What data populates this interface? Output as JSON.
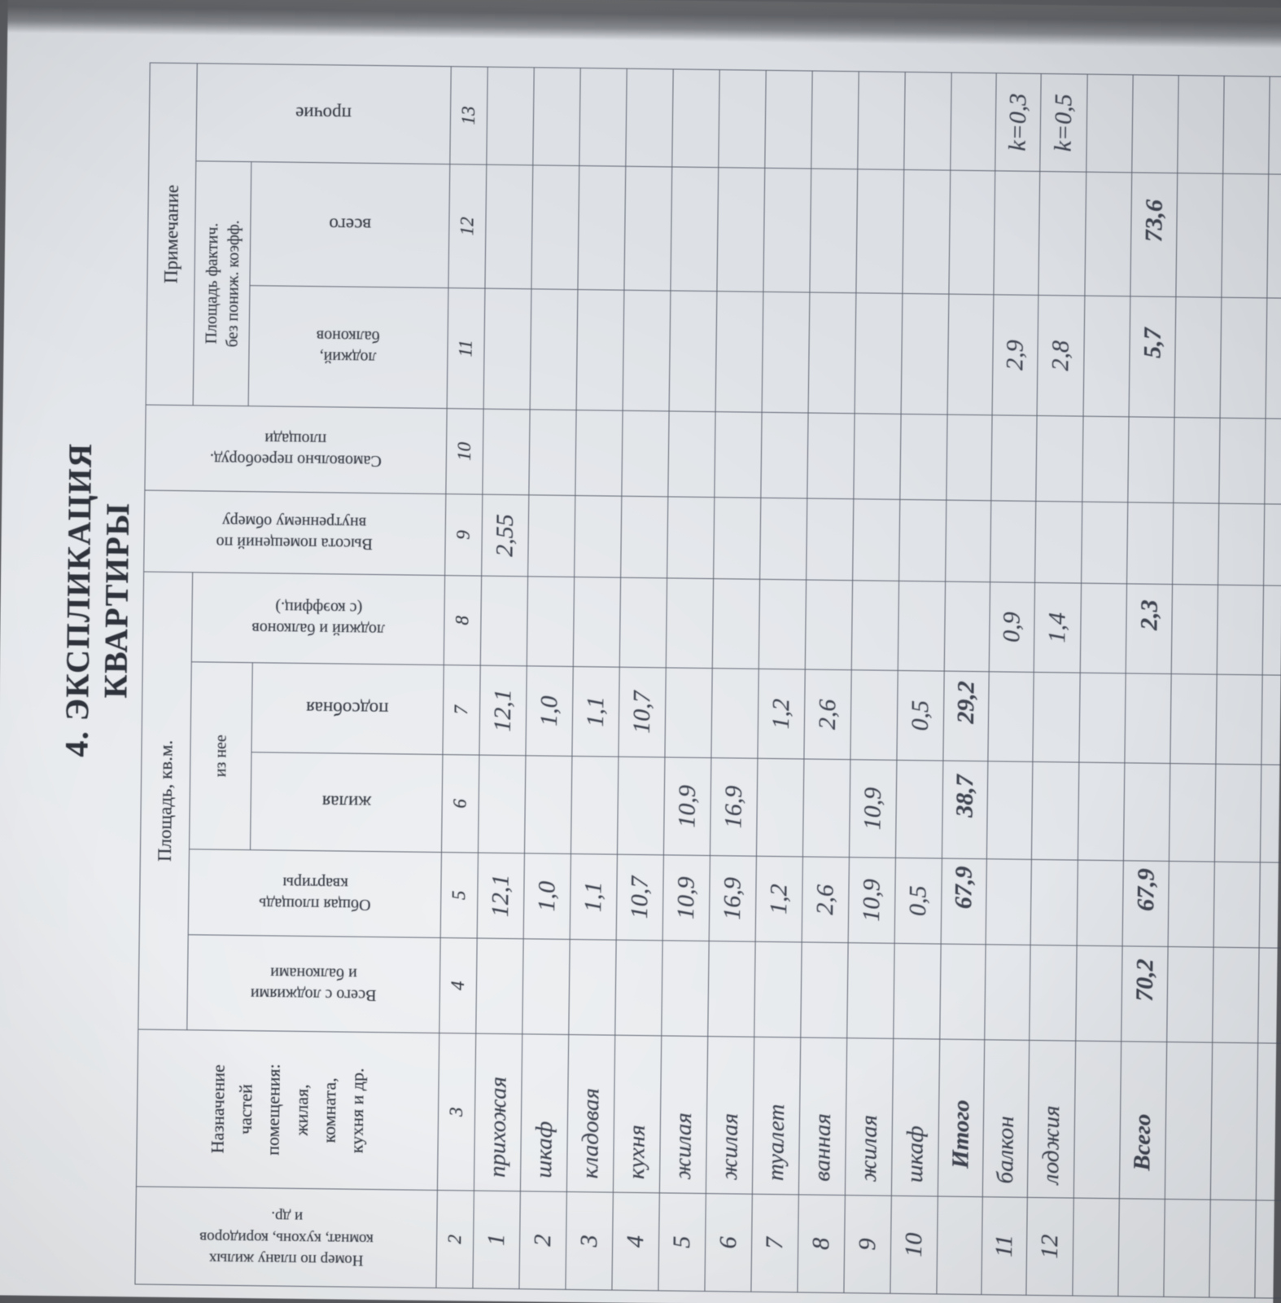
{
  "title": "4. ЭКСПЛИКАЦИЯ КВАРТИРЫ",
  "colors": {
    "paper": "#e4e7eb",
    "ink": "#343842",
    "grid": "#4a505f",
    "photo_edge": "#606267"
  },
  "table": {
    "groups": {
      "area": "Площадь, кв.м.",
      "iz_nee": "из нее",
      "note": "Примечание",
      "fact_line1": "Площадь фактич.",
      "fact_line2": "без пониж. коэфф."
    },
    "columns": {
      "c2": {
        "num": "2",
        "lines": [
          "Номер по плану жилых",
          "комнат, кухонь, коридоров",
          "и др."
        ]
      },
      "c3": {
        "num": "3",
        "lines": [
          "Назначение",
          "частей",
          "помещения:",
          "жилая,",
          "комната,",
          "кухня и др."
        ]
      },
      "c4": {
        "num": "4",
        "lines": [
          "Всего с лоджиями",
          "и балконами"
        ]
      },
      "c5": {
        "num": "5",
        "lines": [
          "Общая площадь",
          "квартиры"
        ]
      },
      "c6": {
        "num": "6",
        "label": "жилая"
      },
      "c7": {
        "num": "7",
        "label": "подсобная"
      },
      "c8": {
        "num": "8",
        "lines": [
          "лоджий и балконов",
          "(с коэффиц.)"
        ]
      },
      "c9": {
        "num": "9",
        "lines": [
          "Высота помещений по",
          "внутреннему обмеру"
        ]
      },
      "c10": {
        "num": "10",
        "lines": [
          "Самовольно переоборуд.",
          "площади"
        ]
      },
      "c11": {
        "num": "11",
        "lines": [
          "лоджий,",
          "балконов"
        ]
      },
      "c12": {
        "num": "12",
        "label": "всего"
      },
      "c13": {
        "num": "13",
        "label": "прочие"
      }
    },
    "rows": [
      {
        "num": "1",
        "name": "прихожая",
        "c5": "12,1",
        "c7": "12,1",
        "c9": "2,55"
      },
      {
        "num": "2",
        "name": "шкаф",
        "c5": "1,0",
        "c7": "1,0"
      },
      {
        "num": "3",
        "name": "кладовая",
        "c5": "1,1",
        "c7": "1,1"
      },
      {
        "num": "4",
        "name": "кухня",
        "c5": "10,7",
        "c7": "10,7"
      },
      {
        "num": "5",
        "name": "жилая",
        "c5": "10,9",
        "c6": "10,9"
      },
      {
        "num": "6",
        "name": "жилая",
        "c5": "16,9",
        "c6": "16,9"
      },
      {
        "num": "7",
        "name": "туалет",
        "c5": "1,2",
        "c7": "1,2"
      },
      {
        "num": "8",
        "name": "ванная",
        "c5": "2,6",
        "c7": "2,6"
      },
      {
        "num": "9",
        "name": "жилая",
        "c5": "10,9",
        "c6": "10,9"
      },
      {
        "num": "10",
        "name": "шкаф",
        "c5": "0,5",
        "c7": "0,5"
      },
      {
        "num": "",
        "name": "Итого",
        "bold": true,
        "c5": "67,9",
        "c6": "38,7",
        "c7": "29,2"
      },
      {
        "num": "11",
        "name": "балкон",
        "c8": "0,9",
        "c11": "2,9",
        "c13": "k=0,3"
      },
      {
        "num": "12",
        "name": "лоджия",
        "c8": "1,4",
        "c11": "2,8",
        "c13": "k=0,5"
      },
      {},
      {
        "num": "",
        "name": "Всего",
        "bold": true,
        "c4": "70,2",
        "c5": "67,9",
        "c8": "2,3",
        "c11": "5,7",
        "c12": "73,6"
      },
      {},
      {},
      {}
    ]
  }
}
